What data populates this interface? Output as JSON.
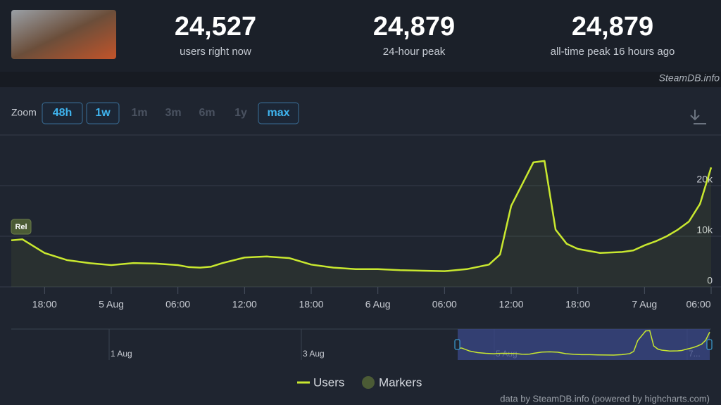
{
  "header": {
    "stats": [
      {
        "value": "24,527",
        "label": "users right now"
      },
      {
        "value": "24,879",
        "label": "24-hour peak"
      },
      {
        "value": "24,879",
        "label": "all-time peak 16 hours ago"
      }
    ],
    "source": "SteamDB.info"
  },
  "zoom": {
    "label": "Zoom",
    "buttons": [
      {
        "text": "48h",
        "enabled": true
      },
      {
        "text": "1w",
        "enabled": true
      },
      {
        "text": "1m",
        "enabled": false
      },
      {
        "text": "3m",
        "enabled": false
      },
      {
        "text": "6m",
        "enabled": false
      },
      {
        "text": "1y",
        "enabled": false
      },
      {
        "text": "max",
        "enabled": true
      }
    ]
  },
  "chart_data": {
    "type": "line",
    "x": [
      "4 Aug 15:00",
      "4 Aug 16:00",
      "4 Aug 18:00",
      "4 Aug 20:00",
      "4 Aug 22:00",
      "5 Aug 00:00",
      "5 Aug 02:00",
      "5 Aug 04:00",
      "5 Aug 06:00",
      "5 Aug 07:00",
      "5 Aug 08:00",
      "5 Aug 09:00",
      "5 Aug 10:00",
      "5 Aug 12:00",
      "5 Aug 14:00",
      "5 Aug 16:00",
      "5 Aug 18:00",
      "5 Aug 20:00",
      "5 Aug 22:00",
      "6 Aug 00:00",
      "6 Aug 02:00",
      "6 Aug 04:00",
      "6 Aug 06:00",
      "6 Aug 08:00",
      "6 Aug 10:00",
      "6 Aug 11:00",
      "6 Aug 12:00",
      "6 Aug 13:00",
      "6 Aug 14:00",
      "6 Aug 15:00",
      "6 Aug 16:00",
      "6 Aug 17:00",
      "6 Aug 18:00",
      "6 Aug 20:00",
      "6 Aug 22:00",
      "6 Aug 23:00",
      "7 Aug 00:00",
      "7 Aug 01:00",
      "7 Aug 02:00",
      "7 Aug 03:00",
      "7 Aug 04:00",
      "7 Aug 05:00",
      "7 Aug 06:00"
    ],
    "series": [
      {
        "name": "Users",
        "color": "#c9e82f",
        "values": [
          9200,
          9400,
          6700,
          5300,
          4700,
          4300,
          4700,
          4600,
          4300,
          3900,
          3800,
          4000,
          4700,
          5800,
          6000,
          5700,
          4400,
          3800,
          3500,
          3500,
          3300,
          3200,
          3100,
          3500,
          4400,
          6400,
          16000,
          20300,
          24600,
          24879,
          11300,
          8500,
          7500,
          6700,
          6900,
          7200,
          8200,
          9000,
          10000,
          11300,
          12900,
          16400,
          23600
        ]
      }
    ],
    "markers": {
      "name": "Markers",
      "color": "#4b5b35"
    },
    "annotations": [
      {
        "text": "Rel",
        "x": "4 Aug 15:00"
      }
    ],
    "xlim": [
      "4 Aug 15:00",
      "7 Aug 06:00"
    ],
    "xticks": [
      {
        "value": "4 Aug 18:00",
        "label": "18:00"
      },
      {
        "value": "5 Aug 00:00",
        "label": "5 Aug"
      },
      {
        "value": "5 Aug 06:00",
        "label": "06:00"
      },
      {
        "value": "5 Aug 12:00",
        "label": "12:00"
      },
      {
        "value": "5 Aug 18:00",
        "label": "18:00"
      },
      {
        "value": "6 Aug 00:00",
        "label": "6 Aug"
      },
      {
        "value": "6 Aug 06:00",
        "label": "06:00"
      },
      {
        "value": "6 Aug 12:00",
        "label": "12:00"
      },
      {
        "value": "6 Aug 18:00",
        "label": "18:00"
      },
      {
        "value": "7 Aug 00:00",
        "label": "7 Aug"
      },
      {
        "value": "7 Aug 06:00",
        "label": "06:00"
      }
    ],
    "ylim": [
      0,
      30000
    ],
    "yticks": [
      0,
      {
        "value": 10000,
        "label": "10k"
      },
      {
        "value": 20000,
        "label": "20k"
      }
    ],
    "grid": true,
    "navigator": {
      "labels": [
        "1 Aug",
        "3 Aug",
        "5 Aug",
        "7..."
      ]
    },
    "credits": "data by SteamDB.info (powered by highcharts.com)"
  }
}
